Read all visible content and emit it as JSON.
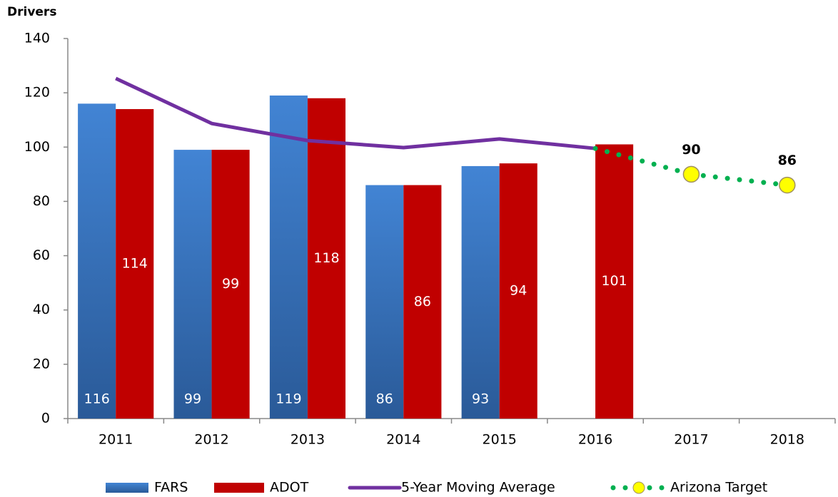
{
  "chart_data": {
    "type": "bar",
    "y_axis_label": "Drivers",
    "categories": [
      "2011",
      "2012",
      "2013",
      "2014",
      "2015",
      "2016",
      "2017",
      "2018"
    ],
    "series": [
      {
        "name": "FARS",
        "type": "bar",
        "color": "#3a78c8",
        "values": [
          116,
          99,
          119,
          86,
          93,
          null,
          null,
          null
        ]
      },
      {
        "name": "ADOT",
        "type": "bar",
        "color": "#c00000",
        "values": [
          114,
          99,
          118,
          86,
          94,
          101,
          null,
          null
        ]
      },
      {
        "name": "5-Year Moving Average",
        "type": "line",
        "color": "#7030a0",
        "values": [
          125.3,
          108.7,
          102.4,
          99.8,
          103,
          99.5,
          null,
          null
        ]
      },
      {
        "name": "Arizona Target",
        "type": "dotted",
        "color": "#00b050",
        "marker_color": "#ffff00",
        "values": [
          null,
          null,
          null,
          null,
          null,
          null,
          90,
          86
        ]
      }
    ],
    "ylim": [
      0,
      140
    ],
    "yticks": [
      0,
      20,
      40,
      60,
      80,
      100,
      120,
      140
    ],
    "legend": "bottom"
  }
}
